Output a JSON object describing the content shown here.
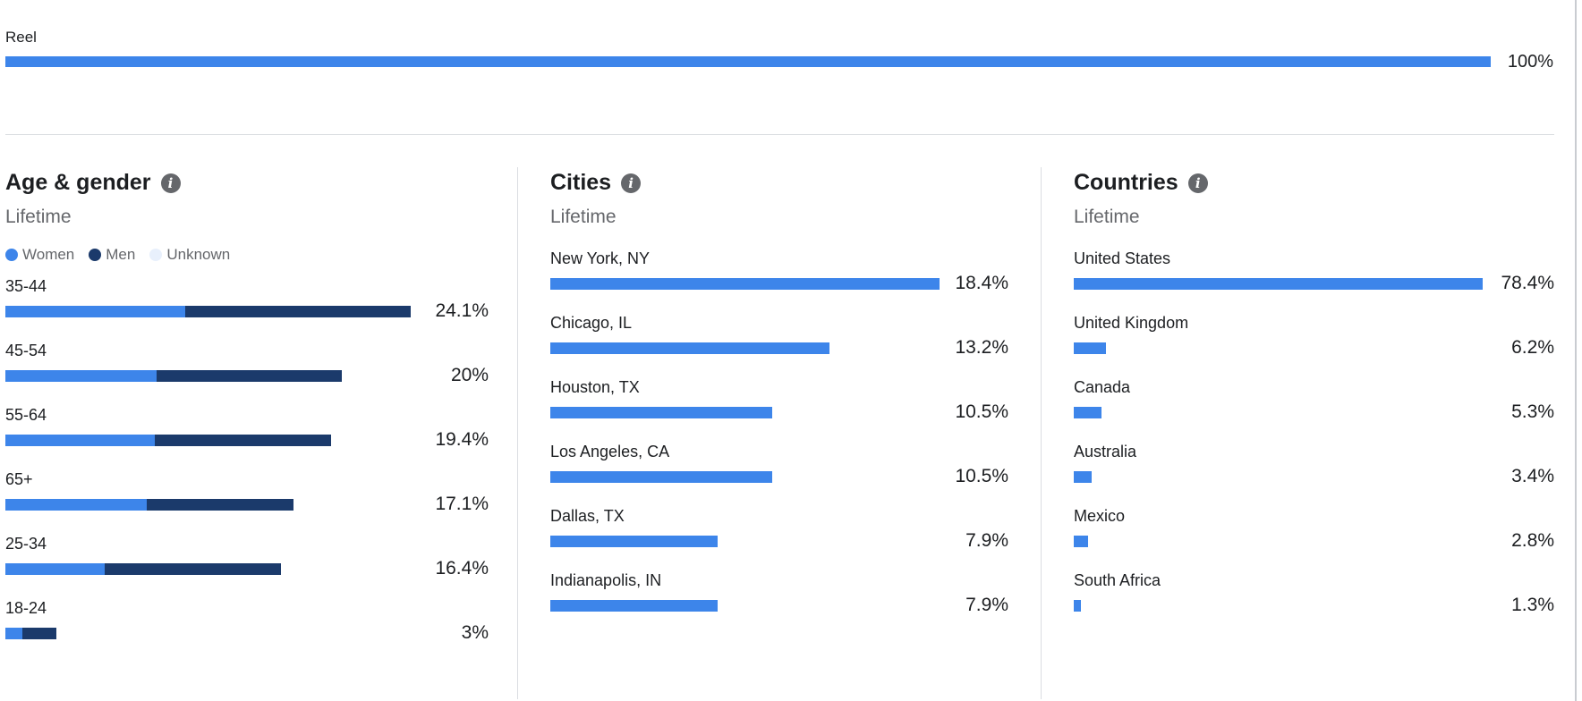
{
  "reel": {
    "label": "Reel",
    "value": 100,
    "value_label": "100%"
  },
  "colors": {
    "women": "#3d85ea",
    "men": "#1b3a6b",
    "unknown": "#e8f0fc",
    "bar": "#3d85ea"
  },
  "age_gender": {
    "title": "Age & gender",
    "subtitle": "Lifetime",
    "legend": [
      "Women",
      "Men",
      "Unknown"
    ],
    "rows": [
      {
        "label": "35-44",
        "total": 24.1,
        "women": 10.7,
        "men": 13.4,
        "value_label": "24.1%"
      },
      {
        "label": "45-54",
        "total": 20,
        "women": 9.0,
        "men": 11.0,
        "value_label": "20%"
      },
      {
        "label": "55-64",
        "total": 19.4,
        "women": 8.9,
        "men": 10.5,
        "value_label": "19.4%"
      },
      {
        "label": "65+",
        "total": 17.1,
        "women": 8.4,
        "men": 8.7,
        "value_label": "17.1%"
      },
      {
        "label": "25-34",
        "total": 16.4,
        "women": 5.9,
        "men": 10.5,
        "value_label": "16.4%"
      },
      {
        "label": "18-24",
        "total": 3,
        "women": 1.0,
        "men": 2.0,
        "value_label": "3%"
      }
    ]
  },
  "cities": {
    "title": "Cities",
    "subtitle": "Lifetime",
    "rows": [
      {
        "label": "New York, NY",
        "value": 18.4,
        "value_label": "18.4%"
      },
      {
        "label": "Chicago, IL",
        "value": 13.2,
        "value_label": "13.2%"
      },
      {
        "label": "Houston, TX",
        "value": 10.5,
        "value_label": "10.5%"
      },
      {
        "label": "Los Angeles, CA",
        "value": 10.5,
        "value_label": "10.5%"
      },
      {
        "label": "Dallas, TX",
        "value": 7.9,
        "value_label": "7.9%"
      },
      {
        "label": "Indianapolis, IN",
        "value": 7.9,
        "value_label": "7.9%"
      }
    ]
  },
  "countries": {
    "title": "Countries",
    "subtitle": "Lifetime",
    "rows": [
      {
        "label": "United States",
        "value": 78.4,
        "value_label": "78.4%"
      },
      {
        "label": "United Kingdom",
        "value": 6.2,
        "value_label": "6.2%"
      },
      {
        "label": "Canada",
        "value": 5.3,
        "value_label": "5.3%"
      },
      {
        "label": "Australia",
        "value": 3.4,
        "value_label": "3.4%"
      },
      {
        "label": "Mexico",
        "value": 2.8,
        "value_label": "2.8%"
      },
      {
        "label": "South Africa",
        "value": 1.3,
        "value_label": "1.3%"
      }
    ]
  }
}
